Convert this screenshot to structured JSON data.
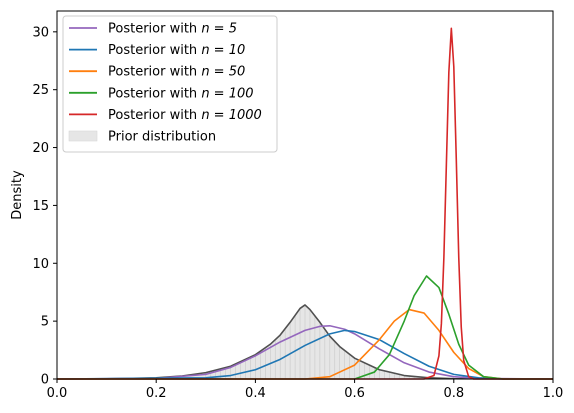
{
  "chart_data": {
    "type": "line",
    "title": "",
    "xlabel": "",
    "ylabel": "Density",
    "xlim": [
      0.0,
      1.0
    ],
    "ylim": [
      0,
      31.8
    ],
    "xticks": [
      "0.0",
      "0.2",
      "0.4",
      "0.6",
      "0.8",
      "1.0"
    ],
    "yticks": [
      "0",
      "5",
      "10",
      "15",
      "20",
      "25",
      "30"
    ],
    "grid": false,
    "legend": "upper-left",
    "prior": {
      "name": "Prior distribution",
      "fill_color": "#e6e6e6",
      "curve_color": "#505050",
      "x": [
        0.0,
        0.1,
        0.2,
        0.25,
        0.3,
        0.35,
        0.4,
        0.43,
        0.45,
        0.47,
        0.49,
        0.5,
        0.51,
        0.53,
        0.55,
        0.57,
        0.6,
        0.65,
        0.7,
        0.75,
        0.8,
        0.9,
        1.0
      ],
      "y": [
        0.0,
        0.02,
        0.1,
        0.25,
        0.55,
        1.1,
        2.1,
        3.0,
        3.8,
        4.9,
        6.1,
        6.4,
        6.0,
        4.9,
        3.7,
        2.8,
        1.8,
        0.8,
        0.3,
        0.1,
        0.03,
        0.0,
        0.0
      ]
    },
    "series": [
      {
        "name": "Posterior with $n = 5$",
        "color": "#9467bd",
        "x": [
          0.0,
          0.2,
          0.3,
          0.35,
          0.4,
          0.45,
          0.5,
          0.53,
          0.55,
          0.58,
          0.6,
          0.65,
          0.7,
          0.75,
          0.8,
          0.85,
          1.0
        ],
        "y": [
          0.0,
          0.05,
          0.4,
          1.0,
          2.0,
          3.2,
          4.2,
          4.55,
          4.6,
          4.3,
          3.9,
          2.6,
          1.4,
          0.6,
          0.2,
          0.05,
          0.0
        ]
      },
      {
        "name": "Posterior with $n = 10$",
        "color": "#1f77b4",
        "x": [
          0.0,
          0.3,
          0.35,
          0.4,
          0.45,
          0.5,
          0.55,
          0.58,
          0.6,
          0.65,
          0.7,
          0.75,
          0.8,
          0.85,
          0.9,
          1.0
        ],
        "y": [
          0.0,
          0.1,
          0.3,
          0.8,
          1.7,
          2.9,
          3.9,
          4.2,
          4.1,
          3.4,
          2.2,
          1.1,
          0.4,
          0.1,
          0.0,
          0.0
        ]
      },
      {
        "name": "Posterior with $n = 50$",
        "color": "#ff7f0e",
        "x": [
          0.0,
          0.5,
          0.55,
          0.6,
          0.65,
          0.68,
          0.71,
          0.74,
          0.77,
          0.8,
          0.83,
          0.86,
          0.9,
          1.0
        ],
        "y": [
          0.0,
          0.0,
          0.2,
          1.2,
          3.4,
          5.0,
          6.0,
          5.7,
          4.2,
          2.3,
          0.9,
          0.2,
          0.0,
          0.0
        ]
      },
      {
        "name": "Posterior with $n = 100$",
        "color": "#2ca02c",
        "x": [
          0.0,
          0.6,
          0.64,
          0.67,
          0.7,
          0.72,
          0.745,
          0.77,
          0.79,
          0.81,
          0.83,
          0.86,
          0.9,
          1.0
        ],
        "y": [
          0.0,
          0.0,
          0.6,
          2.1,
          5.0,
          7.2,
          8.9,
          7.9,
          5.6,
          3.0,
          1.2,
          0.2,
          0.0,
          0.0
        ]
      },
      {
        "name": "Posterior with $n = 1000$",
        "color": "#d62728",
        "x": [
          0.0,
          0.74,
          0.76,
          0.77,
          0.775,
          0.78,
          0.785,
          0.79,
          0.795,
          0.8,
          0.805,
          0.81,
          0.815,
          0.82,
          0.83,
          0.84,
          1.0
        ],
        "y": [
          0.0,
          0.0,
          0.3,
          2.0,
          4.8,
          10.5,
          18.5,
          26.5,
          30.3,
          27.0,
          19.0,
          10.5,
          4.5,
          1.6,
          0.2,
          0.0,
          0.0
        ]
      }
    ]
  }
}
